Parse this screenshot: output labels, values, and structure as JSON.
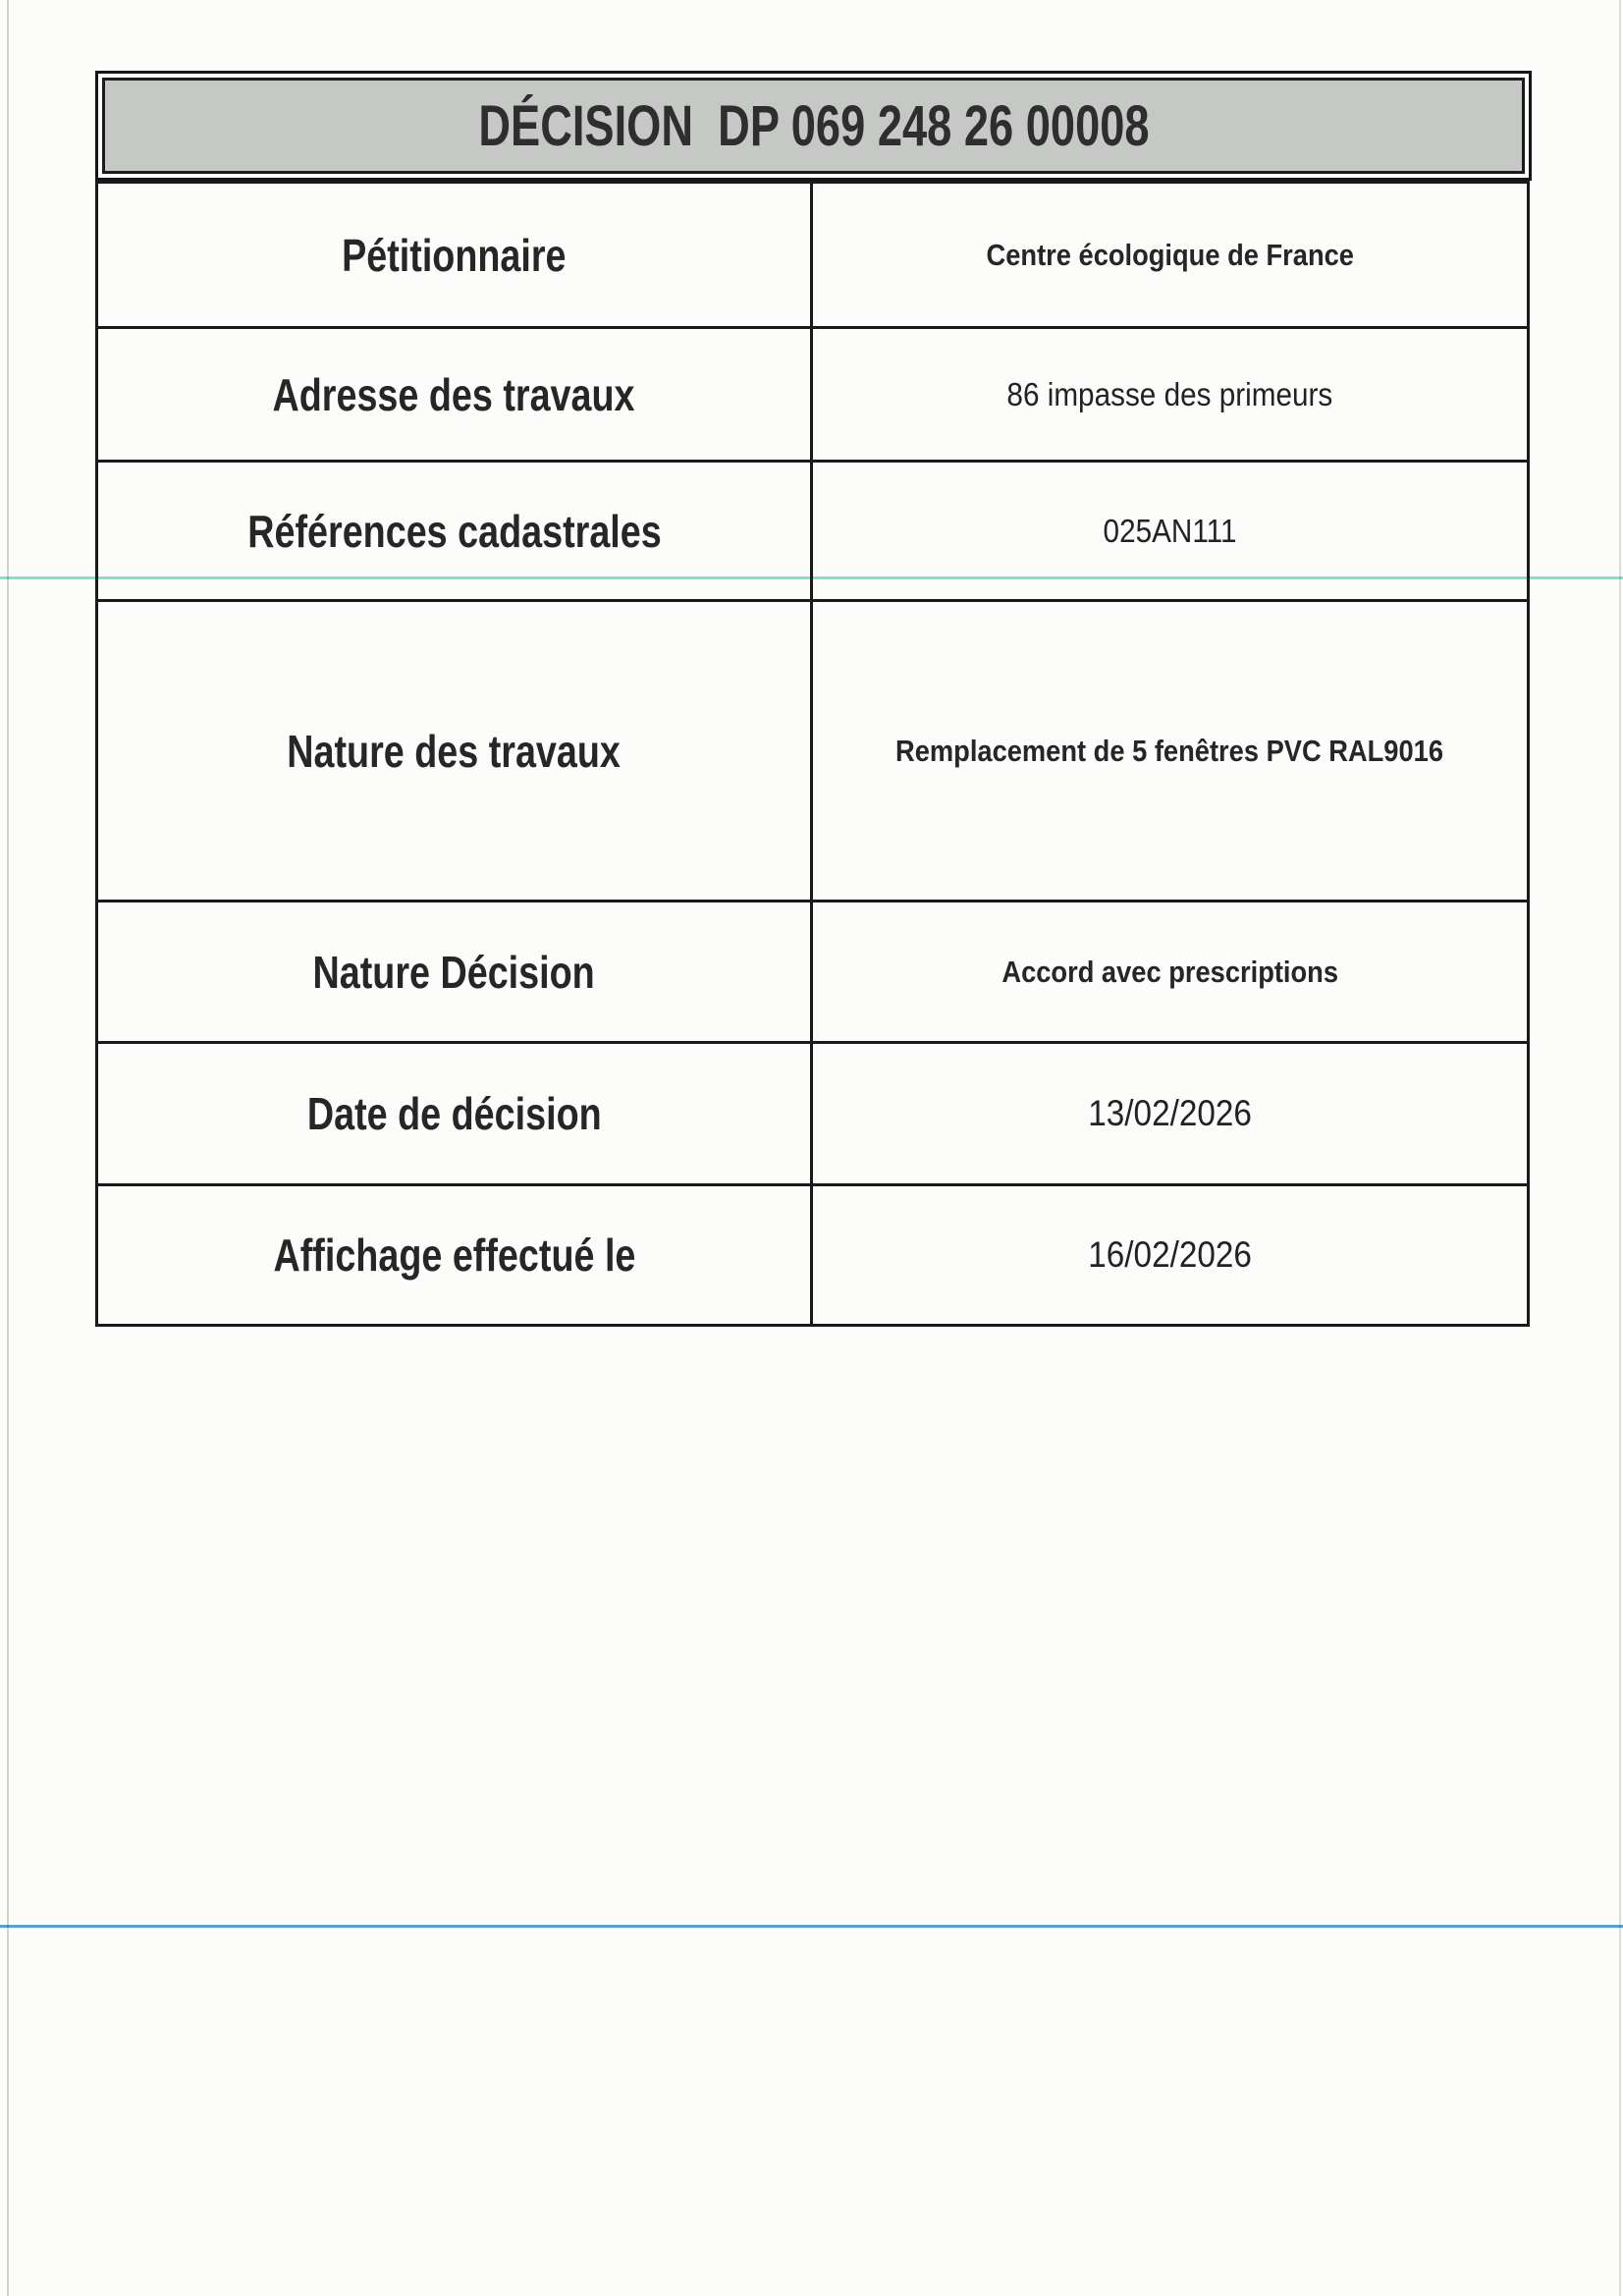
{
  "doc": {
    "title": "DÉCISION  DP 069 248 26 00008",
    "rows": [
      {
        "label": "Pétitionnaire",
        "value": "Centre écologique de France"
      },
      {
        "label": "Adresse des travaux",
        "value": "86 impasse des primeurs"
      },
      {
        "label": "Références cadastrales",
        "value": "025AN111"
      },
      {
        "label": "Nature des travaux",
        "value": "Remplacement de 5 fenêtres PVC RAL9016"
      },
      {
        "label": "Nature Décision",
        "value": "Accord avec prescriptions"
      },
      {
        "label": "Date de décision",
        "value": "13/02/2026"
      },
      {
        "label": "Affichage effectué le",
        "value": "16/02/2026"
      }
    ],
    "colors": {
      "header_background": "#c5c8c5",
      "table_border": "#1a1a1a",
      "scan_line_cyan": "#7fe3dc",
      "scan_line_blue": "#55a4e0",
      "paper": "#fcfcfb"
    }
  }
}
